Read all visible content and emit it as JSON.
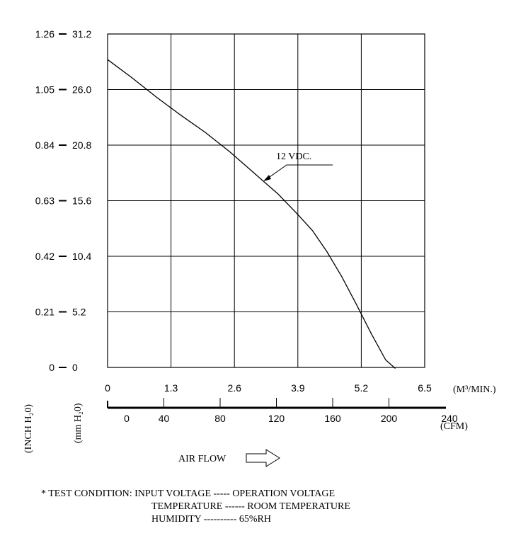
{
  "chart_data": {
    "type": "line",
    "x_m3min_ticks": [
      "0",
      "1.3",
      "2.6",
      "3.9",
      "5.2",
      "6.5"
    ],
    "x_cfm_ticks": [
      "0",
      "40",
      "80",
      "120",
      "160",
      "200",
      "240"
    ],
    "y_inch_ticks": [
      "0",
      "0.21",
      "0.42",
      "0.63",
      "0.84",
      "1.05",
      "1.26"
    ],
    "y_mm_ticks": [
      "0",
      "5.2",
      "10.4",
      "15.6",
      "20.8",
      "26.0",
      "31.2"
    ],
    "xlim": [
      0,
      6.5
    ],
    "ylim": [
      0,
      31.2
    ],
    "grid": true,
    "x_unit_label": "(M³/MIN.)",
    "x_cfm_label": "(CFM)",
    "y_inch_label": "(INCH H₂0)",
    "y_mm_label": "(mm H₂0)",
    "series": [
      {
        "name": "12 VDC.",
        "x": [
          0,
          0.5,
          1.0,
          1.5,
          2.0,
          2.5,
          3.0,
          3.5,
          3.9,
          4.2,
          4.5,
          4.8,
          5.1,
          5.4,
          5.7,
          5.9
        ],
        "y": [
          28.8,
          27.1,
          25.3,
          23.6,
          22.0,
          20.2,
          18.2,
          16.2,
          14.3,
          12.8,
          10.8,
          8.5,
          5.9,
          3.2,
          0.7,
          -0.1
        ]
      }
    ]
  },
  "air_flow_label": "AIR FLOW",
  "test_condition": {
    "lines": [
      "* TEST CONDITION: INPUT VOLTAGE ----- OPERATION VOLTAGE",
      "TEMPERATURE ------ ROOM TEMPERATURE",
      "HUMIDITY ---------- 65%RH"
    ]
  }
}
